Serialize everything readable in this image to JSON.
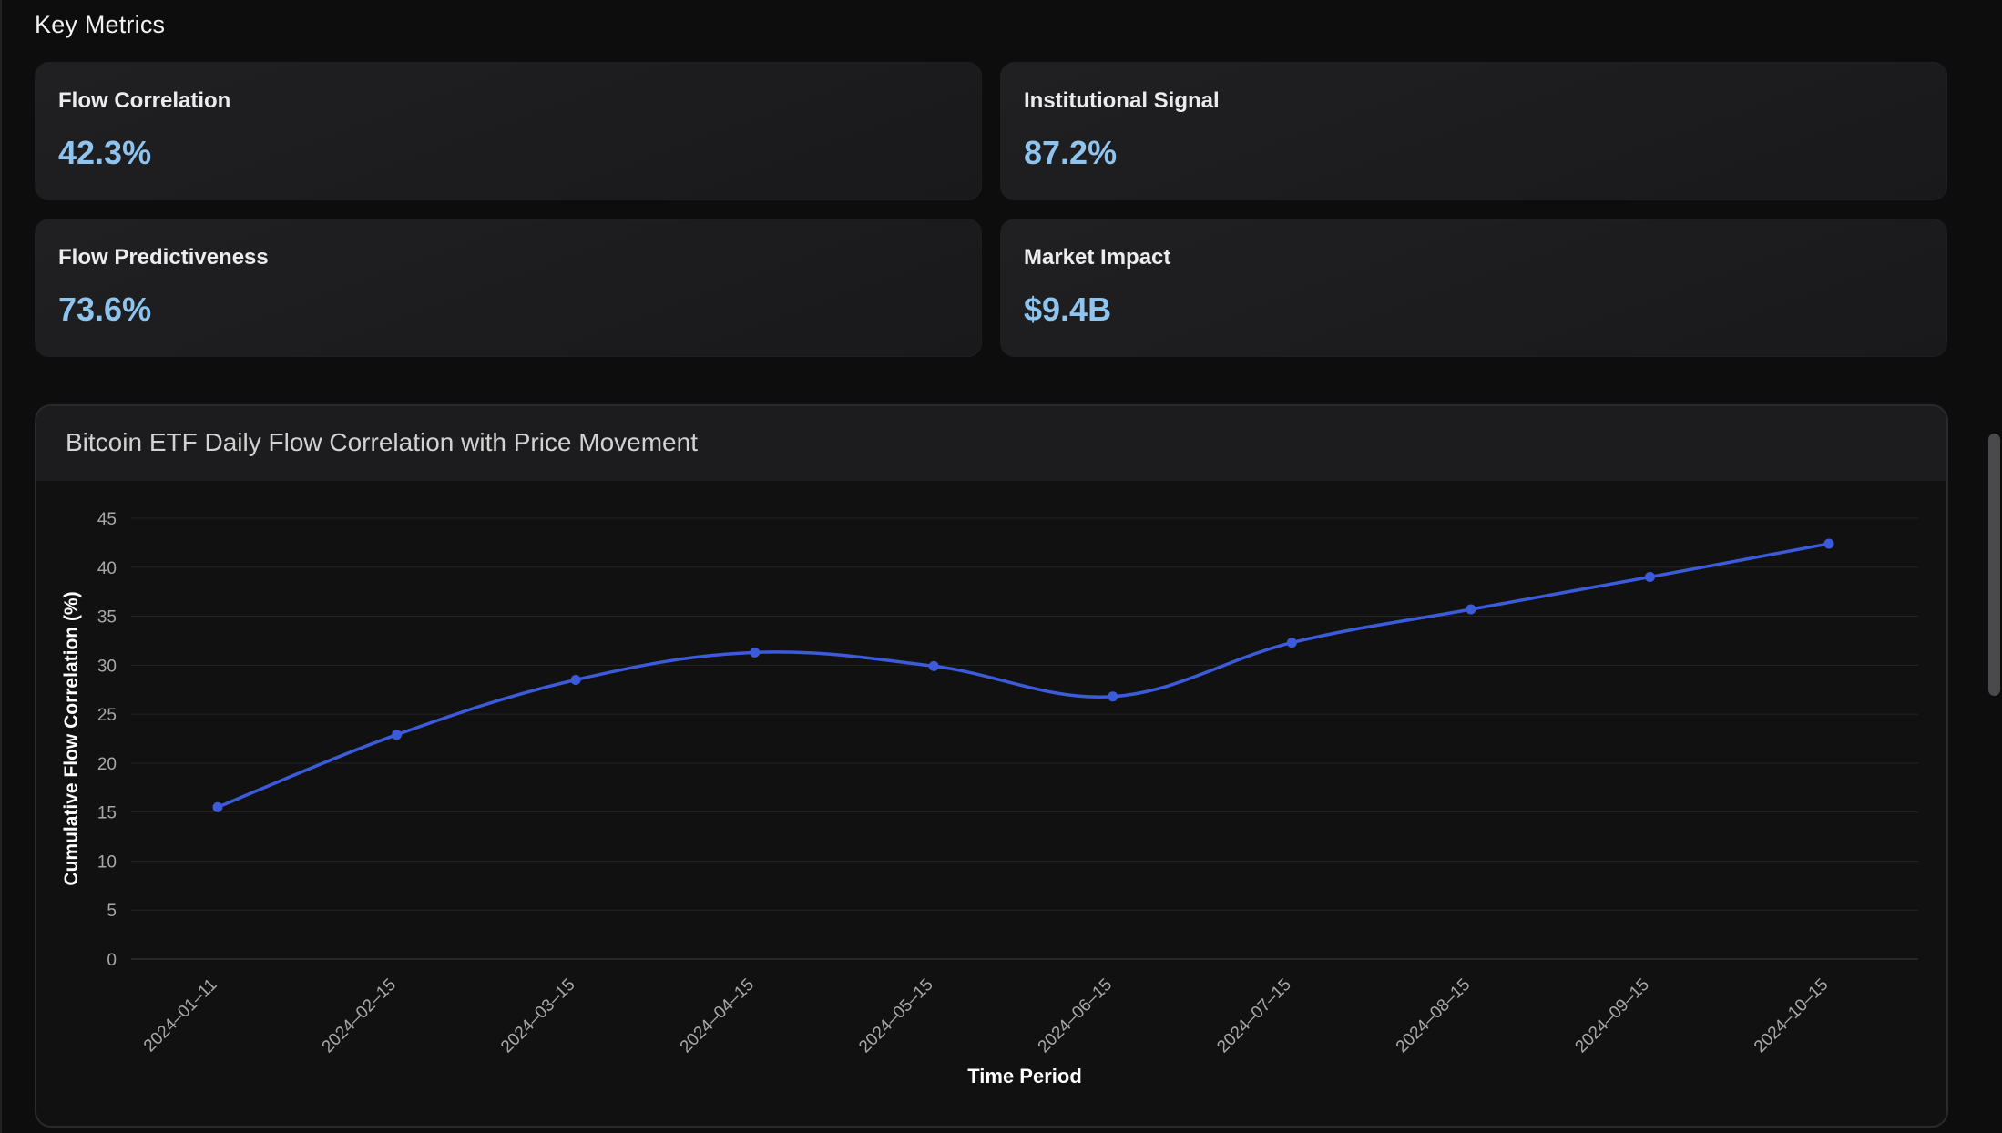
{
  "section": {
    "title": "Key Metrics"
  },
  "metrics": [
    {
      "label": "Flow Correlation",
      "value": "42.3%"
    },
    {
      "label": "Institutional Signal",
      "value": "87.2%"
    },
    {
      "label": "Flow Predictiveness",
      "value": "73.6%"
    },
    {
      "label": "Market Impact",
      "value": "$9.4B"
    }
  ],
  "chart": {
    "header_title": "Bitcoin ETF Daily Flow Correlation with Price Movement"
  },
  "colors": {
    "accent_value": "#8ec4ee",
    "series_line": "#3b5bdb"
  },
  "chart_data": {
    "type": "line",
    "title": "Bitcoin ETF Daily Flow Correlation with Price Movement",
    "xlabel": "Time Period",
    "ylabel": "Cumulative Flow Correlation (%)",
    "ylim": [
      0,
      45
    ],
    "yticks": [
      0,
      5,
      10,
      15,
      20,
      25,
      30,
      35,
      40,
      45
    ],
    "grid": true,
    "categories": [
      "2024–01–11",
      "2024–02–15",
      "2024–03–15",
      "2024–04–15",
      "2024–05–15",
      "2024–06–15",
      "2024–07–15",
      "2024–08–15",
      "2024–09–15",
      "2024–10–15"
    ],
    "series": [
      {
        "values": [
          15.5,
          22.9,
          28.5,
          31.3,
          29.9,
          26.8,
          32.3,
          35.7,
          39.0,
          42.4
        ]
      }
    ]
  }
}
